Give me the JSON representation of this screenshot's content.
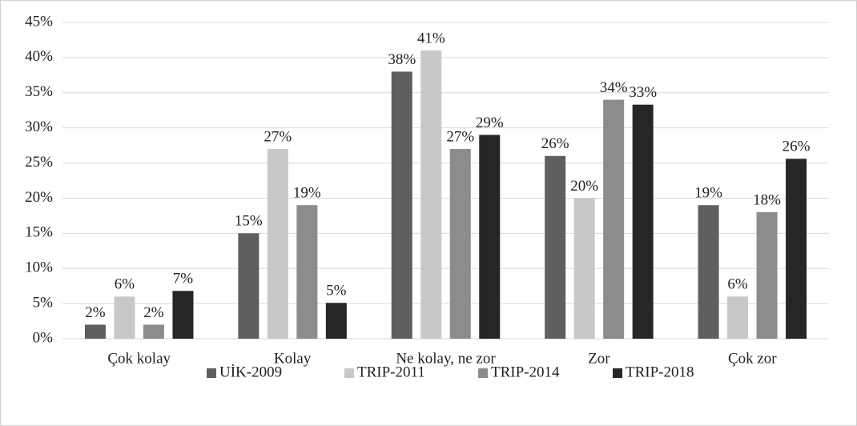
{
  "chart_data": {
    "type": "bar",
    "categories": [
      "Çok kolay",
      "Kolay",
      "Ne kolay, ne zor",
      "Zor",
      "Çok zor"
    ],
    "series": [
      {
        "name": "UİK-2009",
        "color": "#5f5f5f",
        "values": [
          2,
          15,
          38,
          26,
          19
        ],
        "value_labels": [
          "2%",
          "15%",
          "38%",
          "26%",
          "19%"
        ]
      },
      {
        "name": "TRIP-2011",
        "color": "#c8c8c8",
        "values": [
          6,
          27,
          41,
          20,
          6
        ],
        "value_labels": [
          "6%",
          "27%",
          "41%",
          "20%",
          "6%"
        ]
      },
      {
        "name": "TRIP-2014",
        "color": "#8c8c8c",
        "values": [
          2,
          19,
          27,
          34,
          18
        ],
        "value_labels": [
          "2%",
          "19%",
          "27%",
          "34%",
          "18%"
        ]
      },
      {
        "name": "TRIP-2018",
        "color": "#262626",
        "values": [
          6.8,
          5.1,
          29,
          33.3,
          25.6
        ],
        "value_labels": [
          "7%",
          "5%",
          "29%",
          "33%",
          "26%"
        ]
      }
    ],
    "ylim": [
      0,
      45
    ],
    "yticks": [
      {
        "value": 0,
        "label": "0%"
      },
      {
        "value": 5,
        "label": "5%"
      },
      {
        "value": 10,
        "label": "10%"
      },
      {
        "value": 15,
        "label": "15%"
      },
      {
        "value": 20,
        "label": "20%"
      },
      {
        "value": 25,
        "label": "25%"
      },
      {
        "value": 30,
        "label": "30%"
      },
      {
        "value": 35,
        "label": "35%"
      },
      {
        "value": 40,
        "label": "40%"
      },
      {
        "value": 45,
        "label": "45%"
      }
    ],
    "grid": true,
    "legend": "bottom"
  }
}
